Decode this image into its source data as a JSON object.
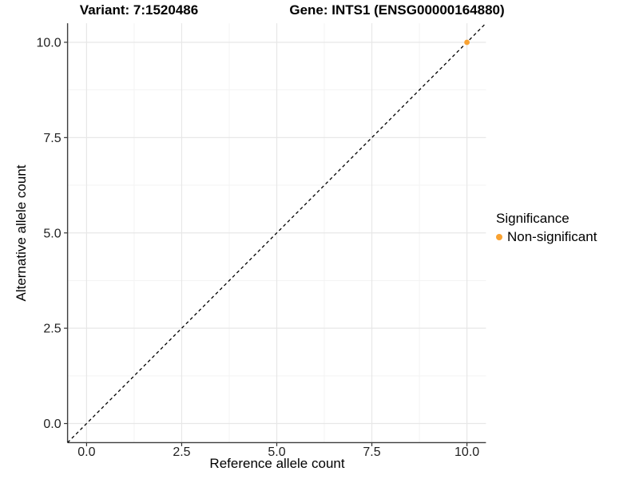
{
  "titles": {
    "variant": "Variant: 7:1520486",
    "gene": "Gene: INTS1 (ENSG00000164880)"
  },
  "legend": {
    "title": "Significance",
    "position": "right",
    "items": [
      {
        "label": "Non-significant",
        "color": "#F9A232"
      }
    ]
  },
  "colors": {
    "background": "#ffffff",
    "grid_major": "#e7e7e7",
    "grid_minor": "#f3f3f3",
    "axis_line": "#3c3c3c",
    "tick_mark": "#333333",
    "tick_label": "#1f1f1f",
    "reference_line": "#000000",
    "point": "#F9A232"
  },
  "chart_data": {
    "type": "scatter",
    "title": "Variant: 7:1520486 | Gene: INTS1 (ENSG00000164880)",
    "xlabel": "Reference allele count",
    "ylabel": "Alternative allele count",
    "xlim": [
      -0.5,
      10.5
    ],
    "ylim": [
      -0.5,
      10.5
    ],
    "grid": true,
    "legend_position": "right",
    "x_ticks": [
      0,
      2.5,
      5,
      7.5,
      10
    ],
    "y_ticks": [
      0,
      2.5,
      5,
      7.5,
      10
    ],
    "x_tick_labels": [
      "0.0",
      "2.5",
      "5.0",
      "7.5",
      "10.0"
    ],
    "y_tick_labels": [
      "0.0",
      "2.5",
      "5.0",
      "7.5",
      "10.0"
    ],
    "x_minor_ticks": [
      1.25,
      3.75,
      6.25,
      8.75
    ],
    "y_minor_ticks": [
      1.25,
      3.75,
      6.25,
      8.75
    ],
    "series": [
      {
        "name": "Non-significant",
        "color": "#F9A232",
        "points": [
          {
            "x": 10,
            "y": 10
          }
        ]
      }
    ],
    "reference_line": {
      "type": "abline",
      "slope": 1,
      "intercept": 0,
      "style": "dashed",
      "color": "#000000"
    }
  }
}
